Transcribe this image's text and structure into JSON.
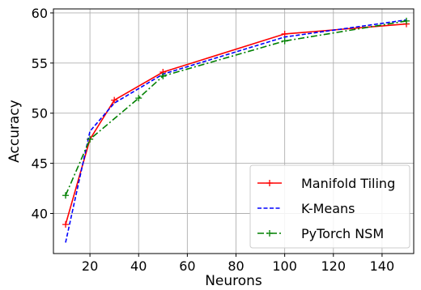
{
  "chart_data": {
    "type": "line",
    "xlabel": "Neurons",
    "ylabel": "Accuracy",
    "xlim": [
      5,
      153
    ],
    "ylim": [
      36,
      60.4
    ],
    "xticks": [
      20,
      40,
      60,
      80,
      100,
      120,
      140
    ],
    "yticks": [
      40,
      45,
      50,
      55,
      60
    ],
    "grid": true,
    "legend_position": "bottom-right",
    "series": [
      {
        "name": "Manifold Tiling",
        "color": "#ff0000",
        "dash": "solid",
        "marker": "plus",
        "x": [
          10,
          20,
          30,
          50,
          100,
          150
        ],
        "y": [
          38.9,
          47.4,
          51.3,
          54.1,
          57.9,
          58.9
        ]
      },
      {
        "name": "K-Means",
        "color": "#0000ff",
        "dash": "dashed",
        "marker": "none",
        "x": [
          10,
          20,
          30,
          50,
          100,
          150
        ],
        "y": [
          37.1,
          48.2,
          51.0,
          53.9,
          57.6,
          59.3
        ]
      },
      {
        "name": "PyTorch NSM",
        "color": "#008000",
        "dash": "dashdot",
        "marker": "plus",
        "x": [
          10,
          20,
          40,
          50,
          100,
          150
        ],
        "y": [
          41.8,
          47.4,
          51.5,
          53.7,
          57.2,
          59.2
        ]
      }
    ]
  }
}
